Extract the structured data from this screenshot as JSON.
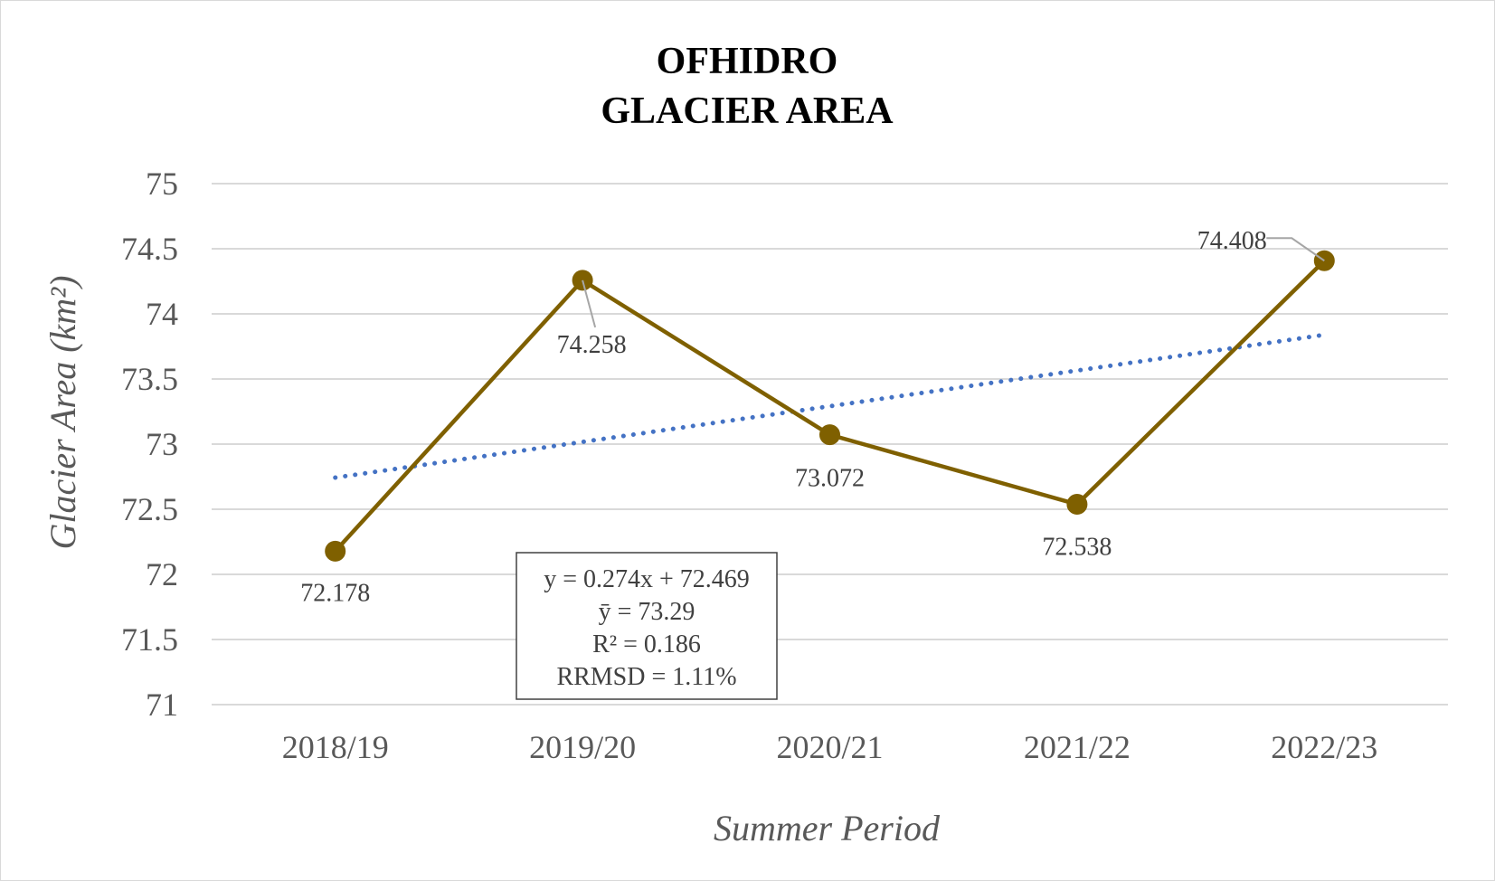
{
  "chart_data": {
    "type": "line",
    "title": [
      "OFHIDRO",
      "GLACIER AREA"
    ],
    "xlabel": "Summer Period",
    "ylabel": "Glacier Area (km²)",
    "categories": [
      "2018/19",
      "2019/20",
      "2020/21",
      "2021/22",
      "2022/23"
    ],
    "ylim": [
      71,
      75
    ],
    "yticks": [
      71,
      71.5,
      72,
      72.5,
      73,
      73.5,
      74,
      74.5,
      75
    ],
    "ytick_labels": [
      "71",
      "71.5",
      "72",
      "72.5",
      "73",
      "73.5",
      "74",
      "74.5",
      "75"
    ],
    "grid": true,
    "series": [
      {
        "values": [
          72.178,
          74.258,
          73.072,
          72.538,
          74.408
        ],
        "data_labels": [
          "72.178",
          "74.258",
          "73.072",
          "72.538",
          "74.408"
        ],
        "color": "#7f6000",
        "marker": "circle"
      }
    ],
    "trendline": {
      "type": "linear",
      "style": "dotted",
      "color": "#4472c4",
      "slope": 0.274,
      "intercept": 72.469
    },
    "stats_box": [
      "y = 0.274x + 72.469",
      "ȳ = 73.29",
      "R² = 0.186",
      "RRMSD = 1.11%"
    ]
  }
}
